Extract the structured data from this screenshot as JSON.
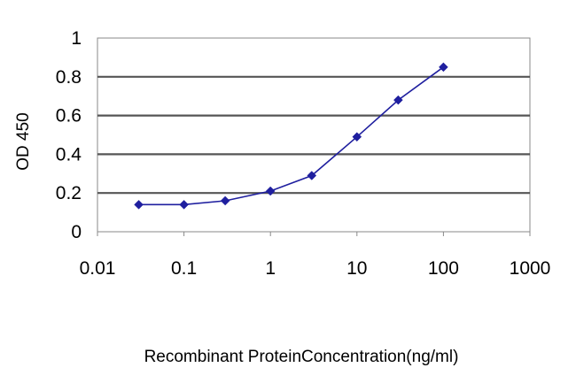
{
  "chart_data": {
    "type": "line",
    "title": "",
    "xlabel": "Recombinant ProteinConcentration(ng/ml)",
    "ylabel": "OD 450",
    "xscale": "log",
    "xlim": [
      0.01,
      1000
    ],
    "ylim": [
      0,
      1
    ],
    "x_ticks": [
      "0.01",
      "0.1",
      "1",
      "10",
      "100",
      "1000"
    ],
    "y_ticks": [
      "0",
      "0.2",
      "0.4",
      "0.6",
      "0.8",
      "1"
    ],
    "grid": "horizontal",
    "legend": "none",
    "series": [
      {
        "x": [
          0.03,
          0.1,
          0.3,
          1,
          3,
          10,
          30,
          100
        ],
        "y": [
          0.14,
          0.14,
          0.16,
          0.21,
          0.29,
          0.49,
          0.68,
          0.85
        ],
        "color": "#1f1f9f"
      }
    ],
    "colors": {
      "plot_background": "#ffffff",
      "gridline": "#555555",
      "frame": "#888888",
      "line": "#1f1f9f",
      "marker": "#1f1f9f"
    }
  }
}
